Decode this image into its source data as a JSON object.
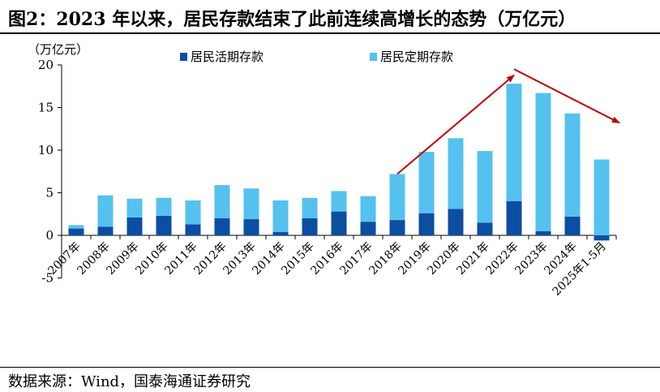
{
  "figure": {
    "title": "图2：2023 年以来，居民存款结束了此前连续高增长的态势（万亿元）",
    "source": "数据来源：Wind，国泰海通证券研究"
  },
  "colors": {
    "demand": "#0b4ea2",
    "time": "#55c1ef",
    "arrow": "#c00000",
    "axis": "#000000"
  },
  "chart_data": {
    "type": "bar",
    "stacked": true,
    "unit_label": "（万亿元）",
    "categories": [
      "2007年",
      "2008年",
      "2009年",
      "2010年",
      "2011年",
      "2012年",
      "2013年",
      "2014年",
      "2015年",
      "2016年",
      "2017年",
      "2018年",
      "2019年",
      "2020年",
      "2021年",
      "2022年",
      "2023年",
      "2024年",
      "2025年1-5月"
    ],
    "series": [
      {
        "name": "居民活期存款",
        "color": "#0b4ea2",
        "values": [
          0.8,
          1.0,
          2.1,
          2.3,
          1.3,
          2.0,
          1.9,
          0.4,
          2.0,
          2.8,
          1.6,
          1.8,
          2.6,
          3.1,
          1.5,
          4.0,
          0.5,
          2.2,
          -0.6
        ]
      },
      {
        "name": "居民定期存款",
        "color": "#55c1ef",
        "values": [
          0.4,
          3.7,
          2.2,
          2.1,
          2.8,
          3.9,
          3.6,
          3.7,
          2.4,
          2.4,
          3.0,
          5.4,
          7.2,
          8.3,
          8.4,
          13.8,
          16.2,
          12.1,
          8.9
        ]
      }
    ],
    "ylim": [
      -5,
      20
    ],
    "yticks": [
      -5,
      0,
      5,
      10,
      15,
      20
    ],
    "ytick_labels": [
      "-5",
      "0",
      "5",
      "10",
      "15",
      "20"
    ],
    "legend_position": "top",
    "grid": false,
    "annotations": [
      {
        "type": "arrow",
        "from": {
          "x": "2018年",
          "y": 7.2
        },
        "to": {
          "x": "2022年",
          "y": 18.8
        }
      },
      {
        "type": "arrow",
        "from": {
          "x": "2022年",
          "y": 19.5
        },
        "to": {
          "x": "2025年1-5月",
          "y": 13.2
        }
      }
    ]
  }
}
